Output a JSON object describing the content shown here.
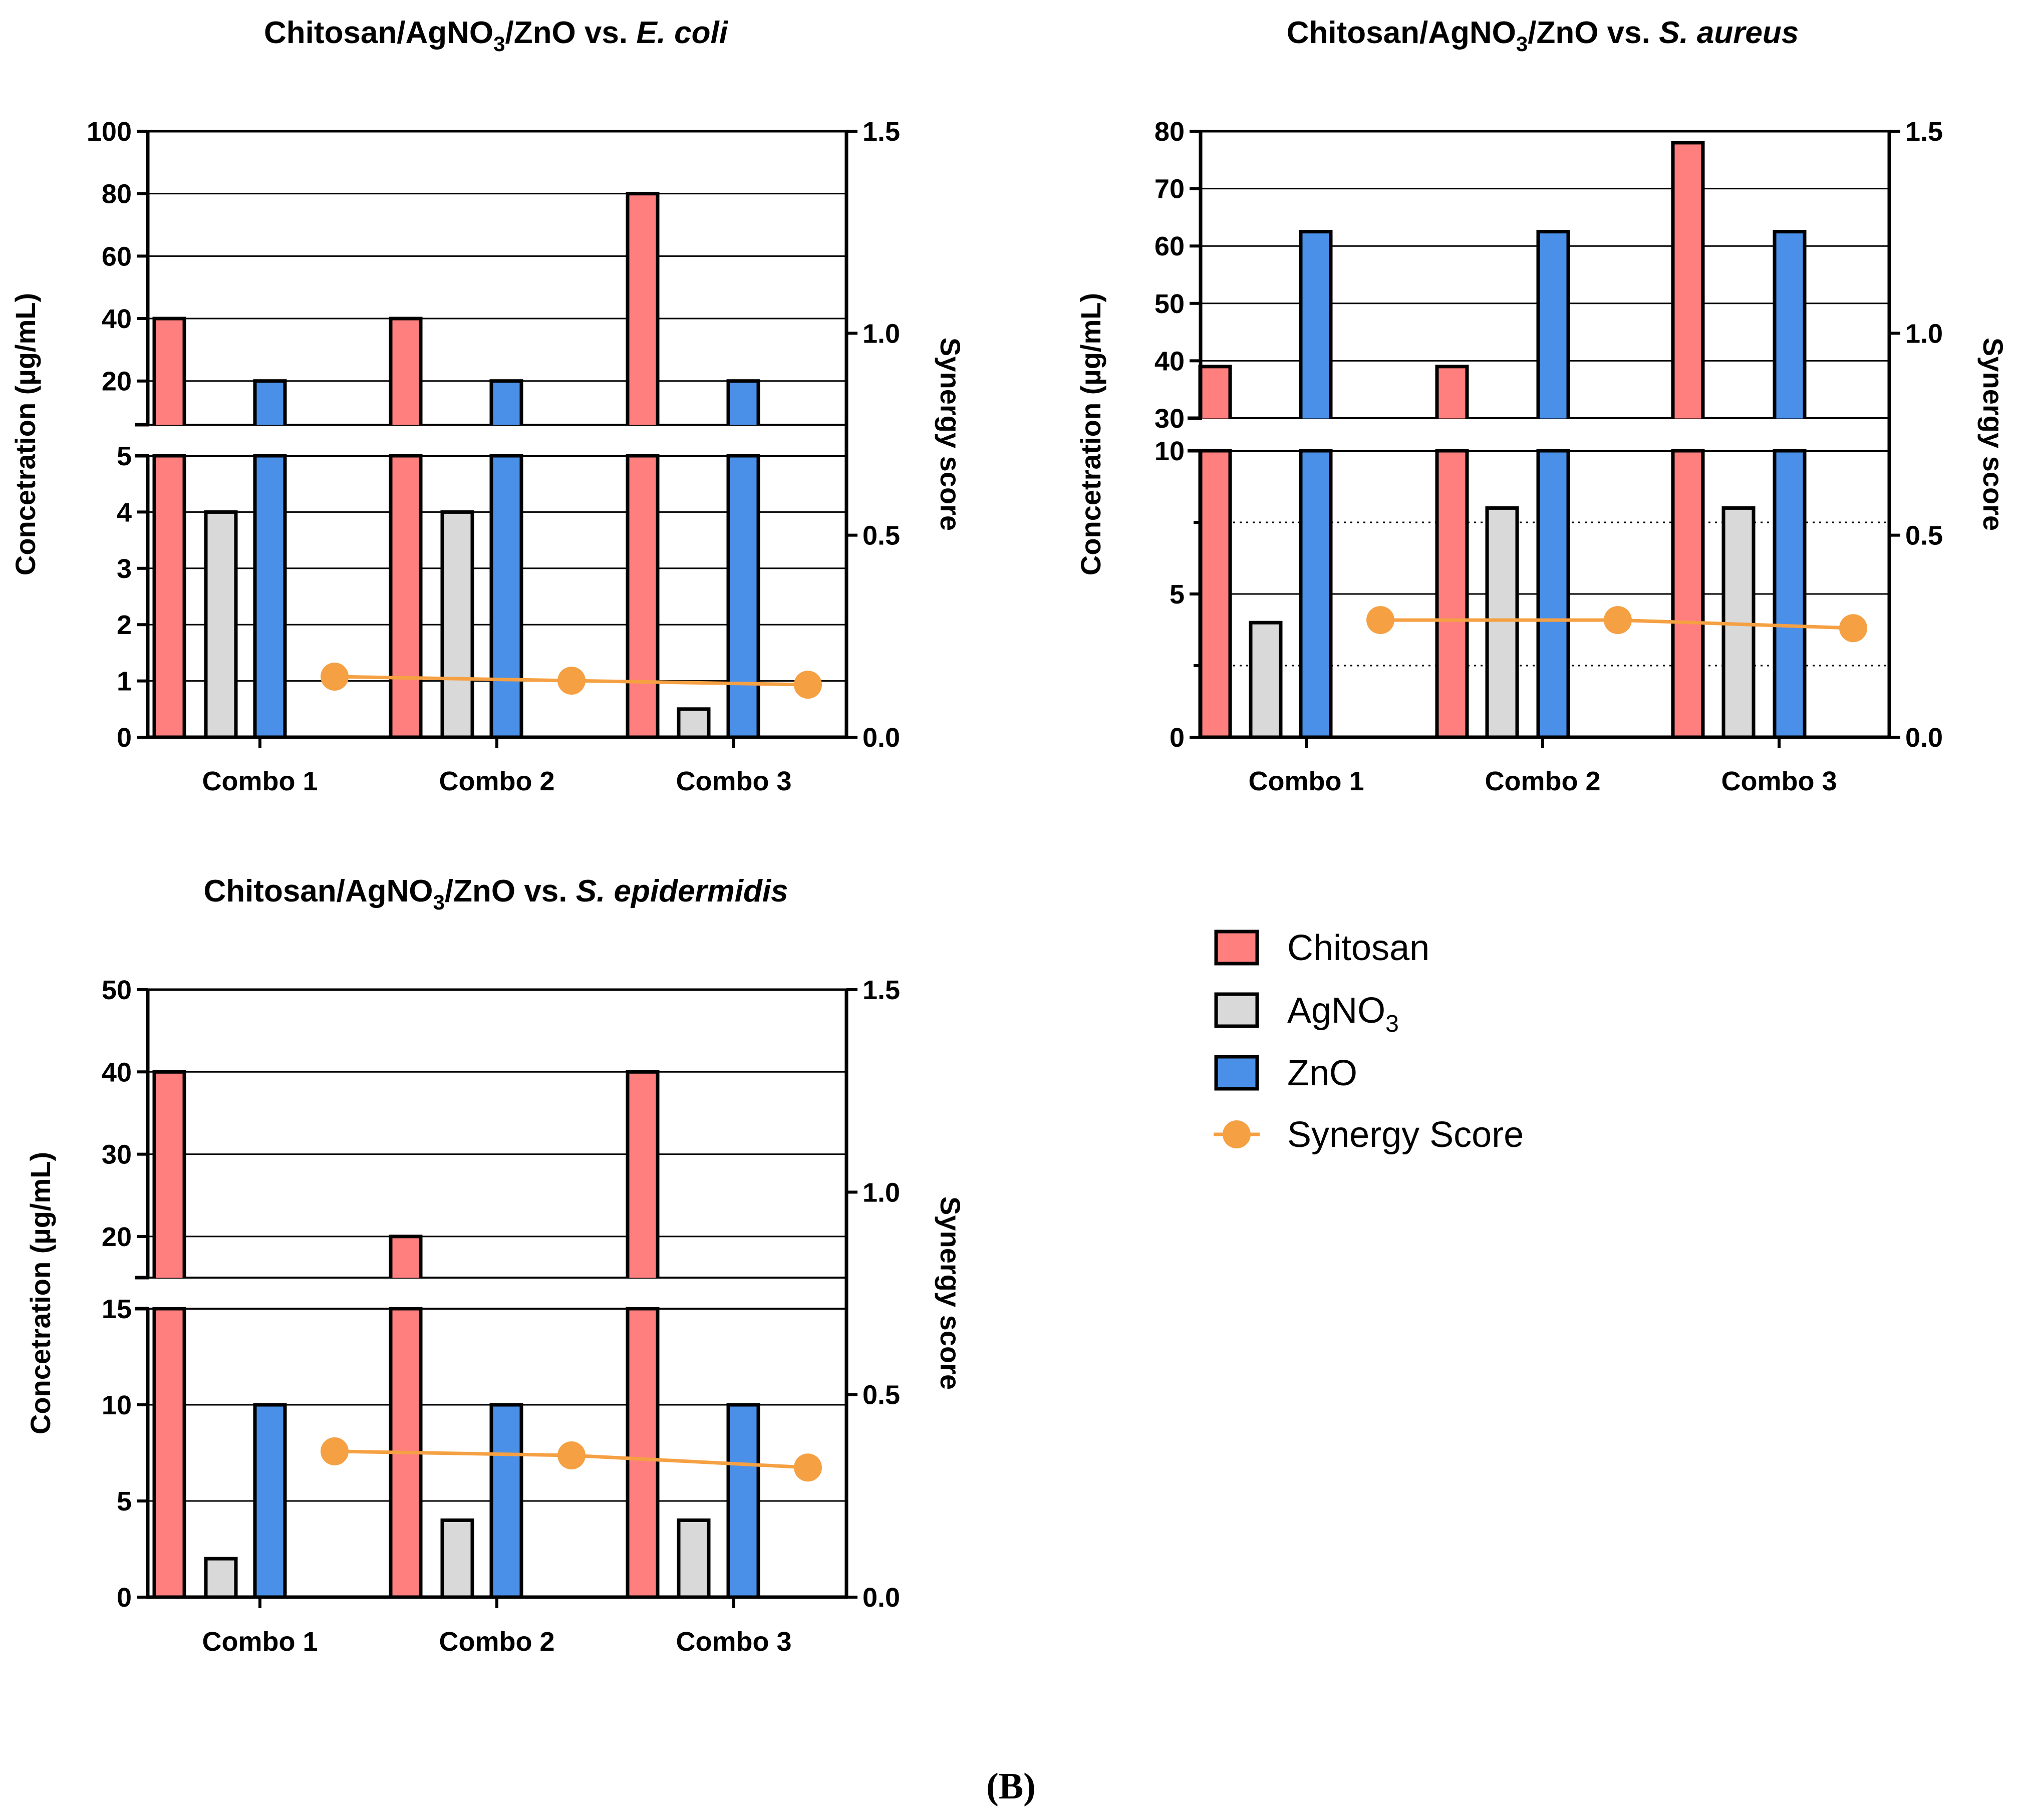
{
  "figure": {
    "panel_label": "(B)",
    "colors": {
      "chitosan": "#FF7F7F",
      "agno3": "#D9D9D9",
      "zno": "#4A90E8",
      "synergy": "#F5A043",
      "axis": "#000000"
    }
  },
  "legend": {
    "items": [
      {
        "key": "chitosan",
        "label": "Chitosan",
        "marker": "bar"
      },
      {
        "key": "agno3",
        "label": "AgNO",
        "sub": "3",
        "marker": "bar"
      },
      {
        "key": "zno",
        "label": "ZnO",
        "marker": "bar"
      },
      {
        "key": "synergy",
        "label": "Synergy Score",
        "marker": "line-dot"
      }
    ]
  },
  "chart_data": [
    {
      "type": "bar",
      "id": "ecoli",
      "title_prefix": "Chitosan/AgNO",
      "title_sub": "3",
      "title_mid": "/ZnO vs. ",
      "title_organism": "E. coli",
      "ylabel": "Concetration (µg/mL)",
      "y2label": "Synergy score",
      "categories": [
        "Combo 1",
        "Combo 2",
        "Combo 3"
      ],
      "series": [
        {
          "name": "Chitosan",
          "key": "chitosan",
          "values": [
            40,
            40,
            80
          ]
        },
        {
          "name": "AgNO3",
          "key": "agno3",
          "values": [
            4,
            4,
            0.5
          ]
        },
        {
          "name": "ZnO",
          "key": "zno",
          "values": [
            20,
            20,
            20
          ]
        }
      ],
      "synergy_score": {
        "name": "Synergy Score",
        "values": [
          0.15,
          0.14,
          0.13
        ]
      },
      "y_lower": {
        "range": [
          0,
          5
        ],
        "ticks": [
          0,
          1,
          2,
          3,
          4,
          5
        ],
        "grid": [
          1,
          2,
          3,
          4
        ]
      },
      "y_upper": {
        "range": [
          6,
          100
        ],
        "ticks": [
          20,
          40,
          60,
          80,
          100
        ],
        "grid": [
          20,
          40,
          60,
          80
        ]
      },
      "y2": {
        "range": [
          0,
          1.5
        ],
        "ticks": [
          "0.0",
          "0.5",
          "1.0",
          "1.5"
        ]
      }
    },
    {
      "type": "bar",
      "id": "saureus",
      "title_prefix": "Chitosan/AgNO",
      "title_sub": "3",
      "title_mid": "/ZnO vs. ",
      "title_organism": "S. aureus",
      "ylabel": "Concetration (µg/mL)",
      "y2label": "Synergy score",
      "categories": [
        "Combo 1",
        "Combo 2",
        "Combo 3"
      ],
      "series": [
        {
          "name": "Chitosan",
          "key": "chitosan",
          "values": [
            39,
            39,
            78
          ]
        },
        {
          "name": "AgNO3",
          "key": "agno3",
          "values": [
            4,
            8,
            8
          ]
        },
        {
          "name": "ZnO",
          "key": "zno",
          "values": [
            62.5,
            62.5,
            62.5
          ]
        }
      ],
      "synergy_score": {
        "name": "Synergy Score",
        "values": [
          0.29,
          0.29,
          0.27
        ]
      },
      "y_lower": {
        "range": [
          0,
          10
        ],
        "ticks": [
          0,
          5,
          10
        ],
        "minor_ticks": [
          2.5,
          7.5
        ],
        "grid_dotted": [
          2.5,
          7.5
        ],
        "grid": [
          5
        ]
      },
      "y_upper": {
        "range": [
          30,
          80
        ],
        "ticks": [
          30,
          40,
          50,
          60,
          70,
          80
        ],
        "grid": [
          40,
          50,
          60,
          70
        ]
      },
      "y2": {
        "range": [
          0,
          1.5
        ],
        "ticks": [
          "0.0",
          "0.5",
          "1.0",
          "1.5"
        ]
      }
    },
    {
      "type": "bar",
      "id": "sepidermidis",
      "title_prefix": "Chitosan/AgNO",
      "title_sub": "3",
      "title_mid": "/ZnO vs. ",
      "title_organism": "S. epidermidis",
      "ylabel": "Concetration (µg/mL)",
      "y2label": "Synergy score",
      "categories": [
        "Combo 1",
        "Combo 2",
        "Combo 3"
      ],
      "series": [
        {
          "name": "Chitosan",
          "key": "chitosan",
          "values": [
            40,
            20,
            40
          ]
        },
        {
          "name": "AgNO3",
          "key": "agno3",
          "values": [
            2,
            4,
            4
          ]
        },
        {
          "name": "ZnO",
          "key": "zno",
          "values": [
            10,
            10,
            10
          ]
        }
      ],
      "synergy_score": {
        "name": "Synergy Score",
        "values": [
          0.36,
          0.35,
          0.32
        ]
      },
      "y_lower": {
        "range": [
          0,
          15
        ],
        "ticks": [
          0,
          5,
          10,
          15
        ],
        "grid": [
          5,
          10
        ]
      },
      "y_upper": {
        "range": [
          15,
          50
        ],
        "ticks": [
          20,
          30,
          40,
          50
        ],
        "grid": [
          20,
          30,
          40
        ]
      },
      "y2": {
        "range": [
          0,
          1.5
        ],
        "ticks": [
          "0.0",
          "0.5",
          "1.0",
          "1.5"
        ]
      }
    }
  ]
}
